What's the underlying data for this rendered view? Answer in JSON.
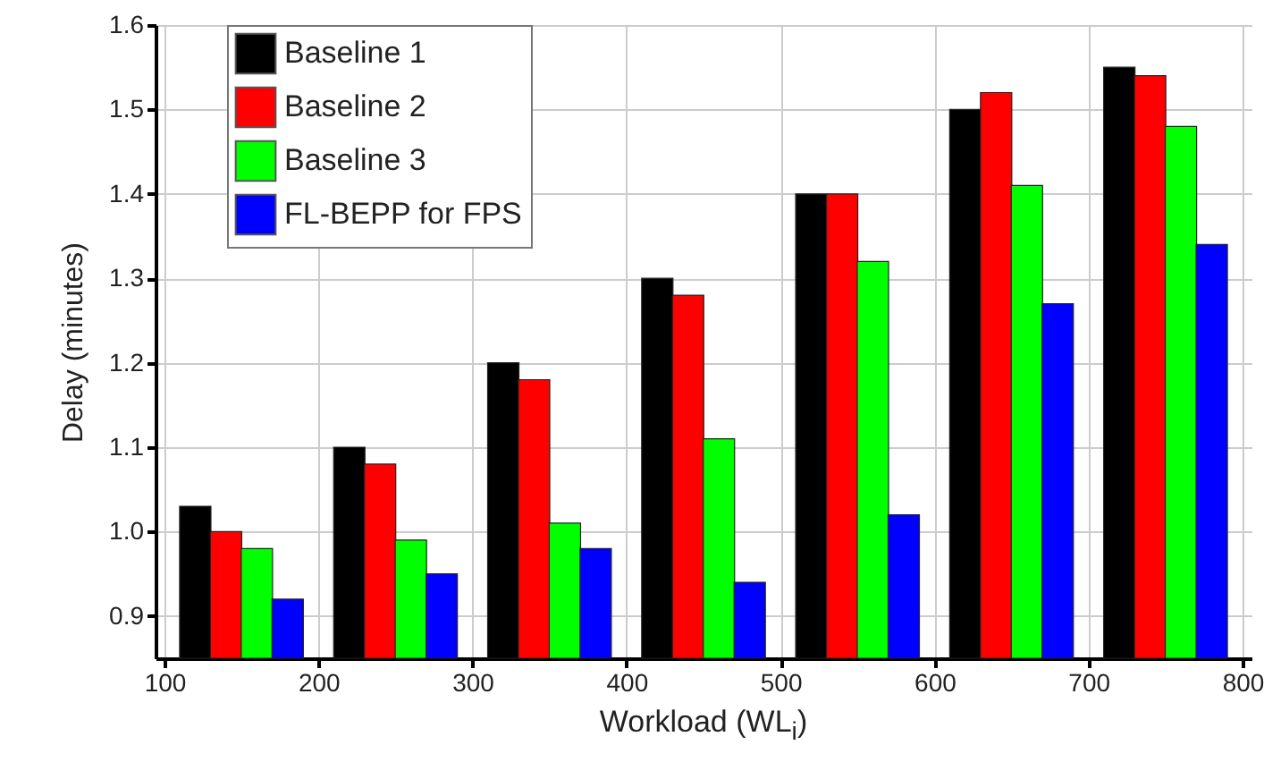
{
  "chart_data": {
    "type": "bar",
    "xlabel": "Workload (WL$_{i}$)",
    "ylabel": "Delay (minutes)",
    "xlim": [
      100,
      800
    ],
    "xticks": [
      100,
      200,
      300,
      400,
      500,
      600,
      700,
      800
    ],
    "ylim": [
      0.85,
      1.6
    ],
    "yticks": [
      0.9,
      {
        "value": 1,
        "label": "1.0"
      },
      1.1,
      1.2,
      1.3,
      1.4,
      1.5,
      1.6
    ],
    "grid": true,
    "legend": "top left",
    "series": [
      {
        "name": "Baseline 1",
        "color": "#000000",
        "x": [
          120,
          220,
          320,
          420,
          520,
          620,
          720
        ],
        "values": [
          1.03,
          1.1,
          1.2,
          1.3,
          1.4,
          1.5,
          1.55
        ]
      },
      {
        "name": "Baseline 2",
        "color": "#ff0000",
        "x": [
          140,
          240,
          340,
          440,
          540,
          640,
          740
        ],
        "values": [
          1.0,
          1.08,
          1.18,
          1.28,
          1.4,
          1.52,
          1.54
        ]
      },
      {
        "name": "Baseline 3",
        "color": "#00ff00",
        "x": [
          160,
          260,
          360,
          460,
          560,
          660,
          760
        ],
        "values": [
          0.98,
          0.99,
          1.01,
          1.11,
          1.32,
          1.41,
          1.48
        ]
      },
      {
        "name": "FL-BEPP for FPS",
        "color": "#0000ff",
        "x": [
          180,
          280,
          380,
          480,
          580,
          680,
          780
        ],
        "values": [
          0.92,
          0.95,
          0.98,
          0.94,
          1.02,
          1.27,
          1.34
        ]
      }
    ]
  }
}
